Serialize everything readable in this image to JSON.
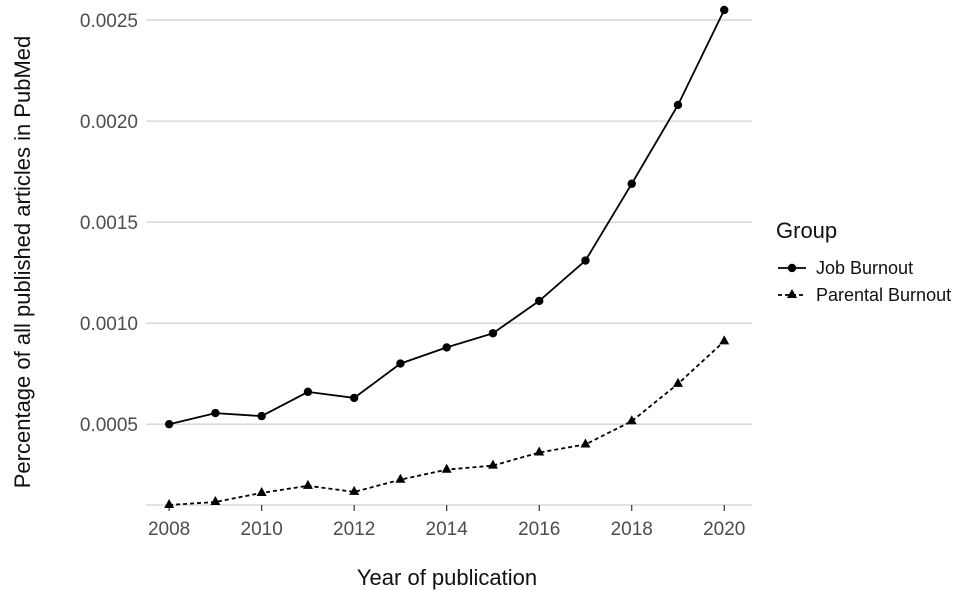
{
  "chart_data": {
    "type": "line",
    "xlabel": "Year of publication",
    "ylabel": "Percentage of all published articles in PubMed",
    "x": [
      2008,
      2009,
      2010,
      2011,
      2012,
      2013,
      2014,
      2015,
      2016,
      2017,
      2018,
      2019,
      2020
    ],
    "xticks": [
      2008,
      2010,
      2012,
      2014,
      2016,
      2018,
      2020
    ],
    "xtick_labels": [
      "2008",
      "2010",
      "2012",
      "2014",
      "2016",
      "2018",
      "2020"
    ],
    "yticks": [
      0.0005,
      0.001,
      0.0015,
      0.002,
      0.0025
    ],
    "ytick_labels": [
      "0.0005",
      "0.0010",
      "0.0015",
      "0.0020",
      "0.0025"
    ],
    "xlim": [
      2007.5,
      2020.6
    ],
    "ylim": [
      0.0001,
      0.00255
    ],
    "grid": "horizontal major lines",
    "legend": {
      "title": "Group",
      "position": "right"
    },
    "series": [
      {
        "name": "Job Burnout",
        "marker": "circle",
        "line_style": "solid",
        "values": [
          0.0005,
          0.000555,
          0.00054,
          0.00066,
          0.00063,
          0.0008,
          0.00088,
          0.00095,
          0.00111,
          0.00131,
          0.00169,
          0.00208,
          0.00255
        ]
      },
      {
        "name": "Parental Burnout",
        "marker": "triangle",
        "line_style": "dashed",
        "values": [
          0.0001,
          0.000115,
          0.00016,
          0.000195,
          0.000165,
          0.000225,
          0.000275,
          0.000295,
          0.00036,
          0.0004,
          0.000515,
          0.0007,
          0.00091
        ]
      }
    ]
  },
  "colors": {
    "line": "#000000",
    "grid": "#d9d9d9",
    "tick_text": "#4d4d4d",
    "background": "#ffffff"
  }
}
